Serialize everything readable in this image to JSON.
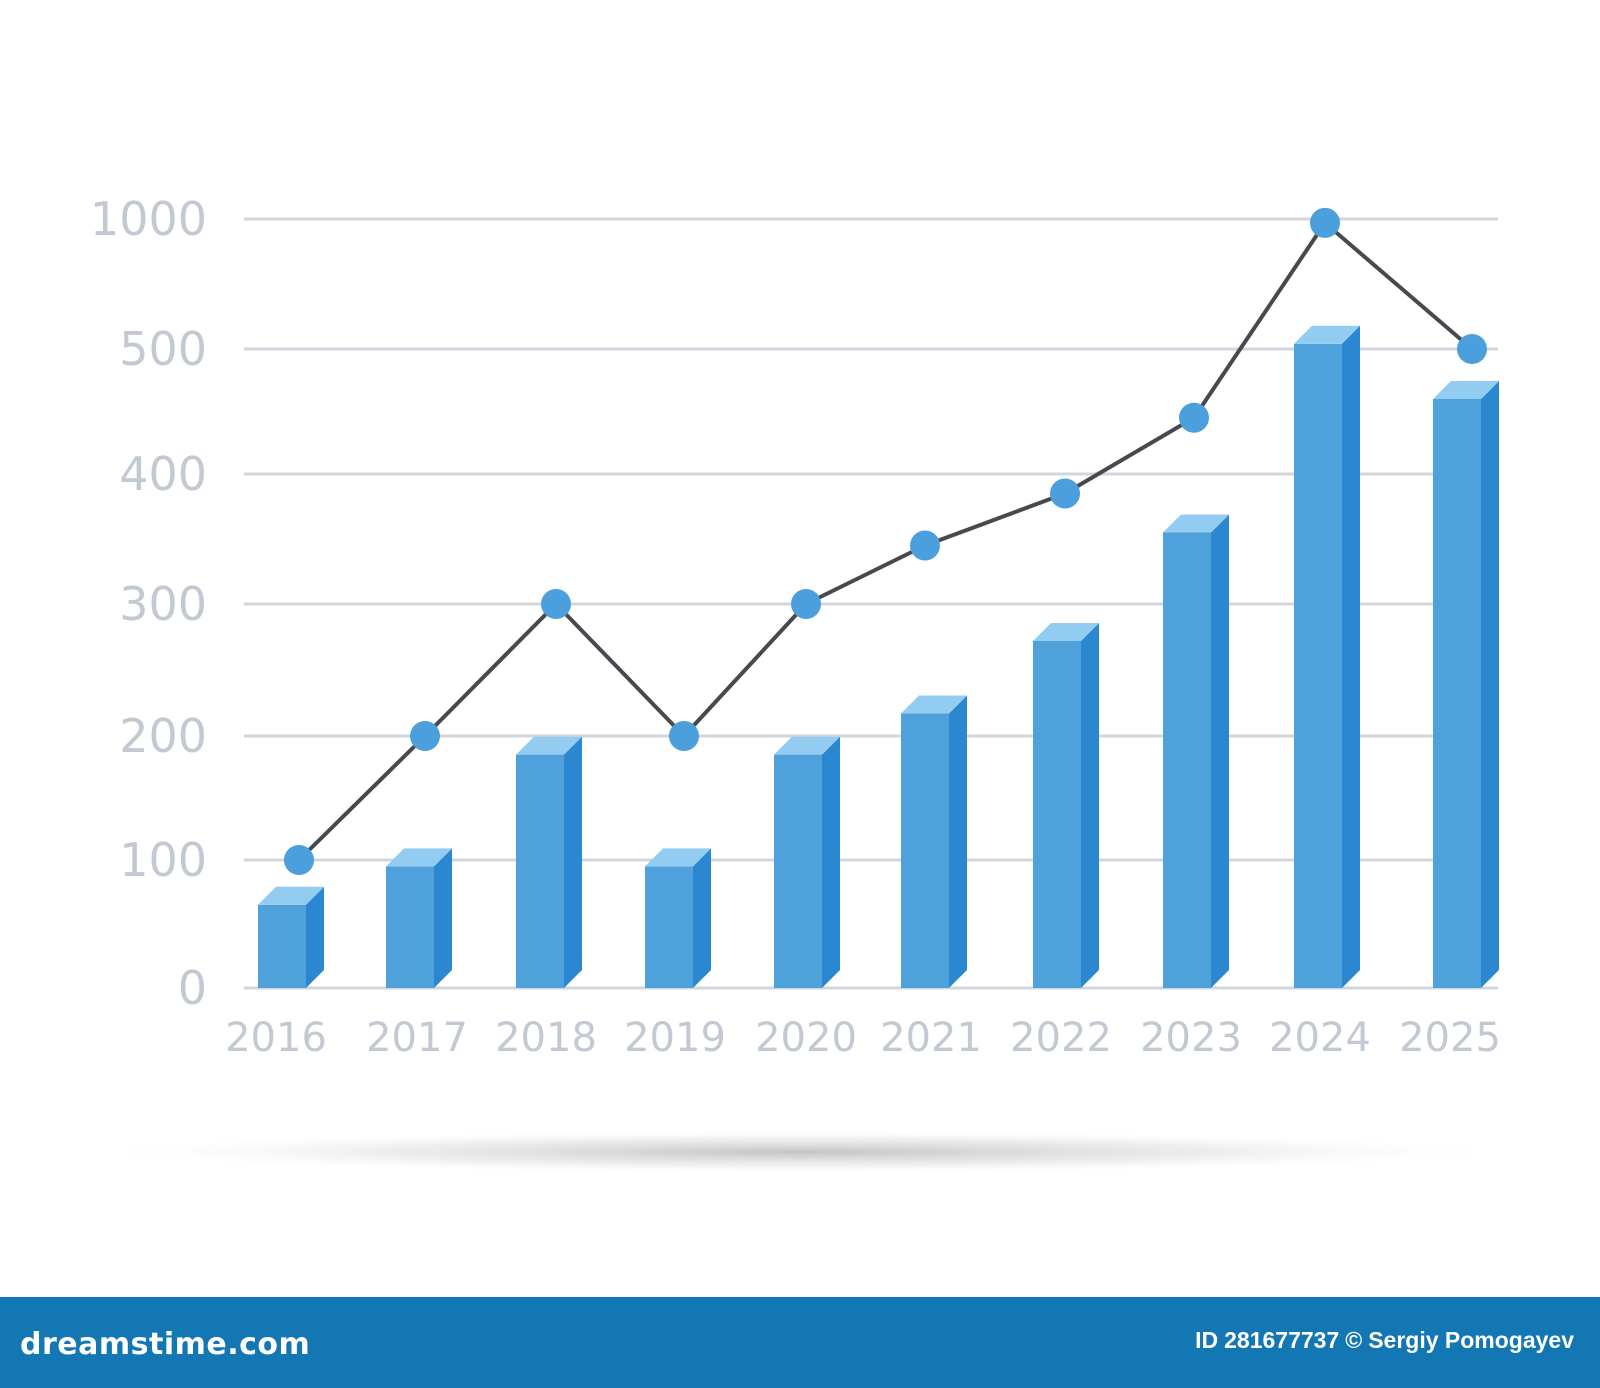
{
  "chart_data": {
    "type": "bar",
    "categories": [
      "2016",
      "2017",
      "2018",
      "2019",
      "2020",
      "2021",
      "2022",
      "2023",
      "2024",
      "2025"
    ],
    "series": [
      {
        "type": "bar",
        "values": [
          65,
          95,
          185,
          95,
          185,
          217,
          272,
          355,
          520,
          460
        ]
      },
      {
        "type": "line",
        "values": [
          100,
          200,
          300,
          200,
          300,
          345,
          385,
          445,
          985,
          500
        ]
      }
    ],
    "y_ticks": [
      "0",
      "100",
      "200",
      "300",
      "400",
      "500",
      "1000"
    ],
    "ylim": [
      0,
      1000
    ],
    "y_scale": "non-linear tick spacing (0–500 in steps of 100, then 1000)",
    "grid": true,
    "legend": "none",
    "colors": {
      "bar_front": "#4fa1dc",
      "bar_side": "#2b87cf",
      "bar_top": "#93ccf1",
      "line": "#48484f",
      "marker": "#4a9fdc",
      "grid": "#d0d5de",
      "tick_label": "#c3c9d3"
    }
  },
  "watermark": {
    "site": "dreamstime.com",
    "id_label": "ID",
    "id": "281677737",
    "copyright_symbol": "©",
    "author": "Sergiy Pomogayev",
    "bar_color": "#1277b3"
  }
}
